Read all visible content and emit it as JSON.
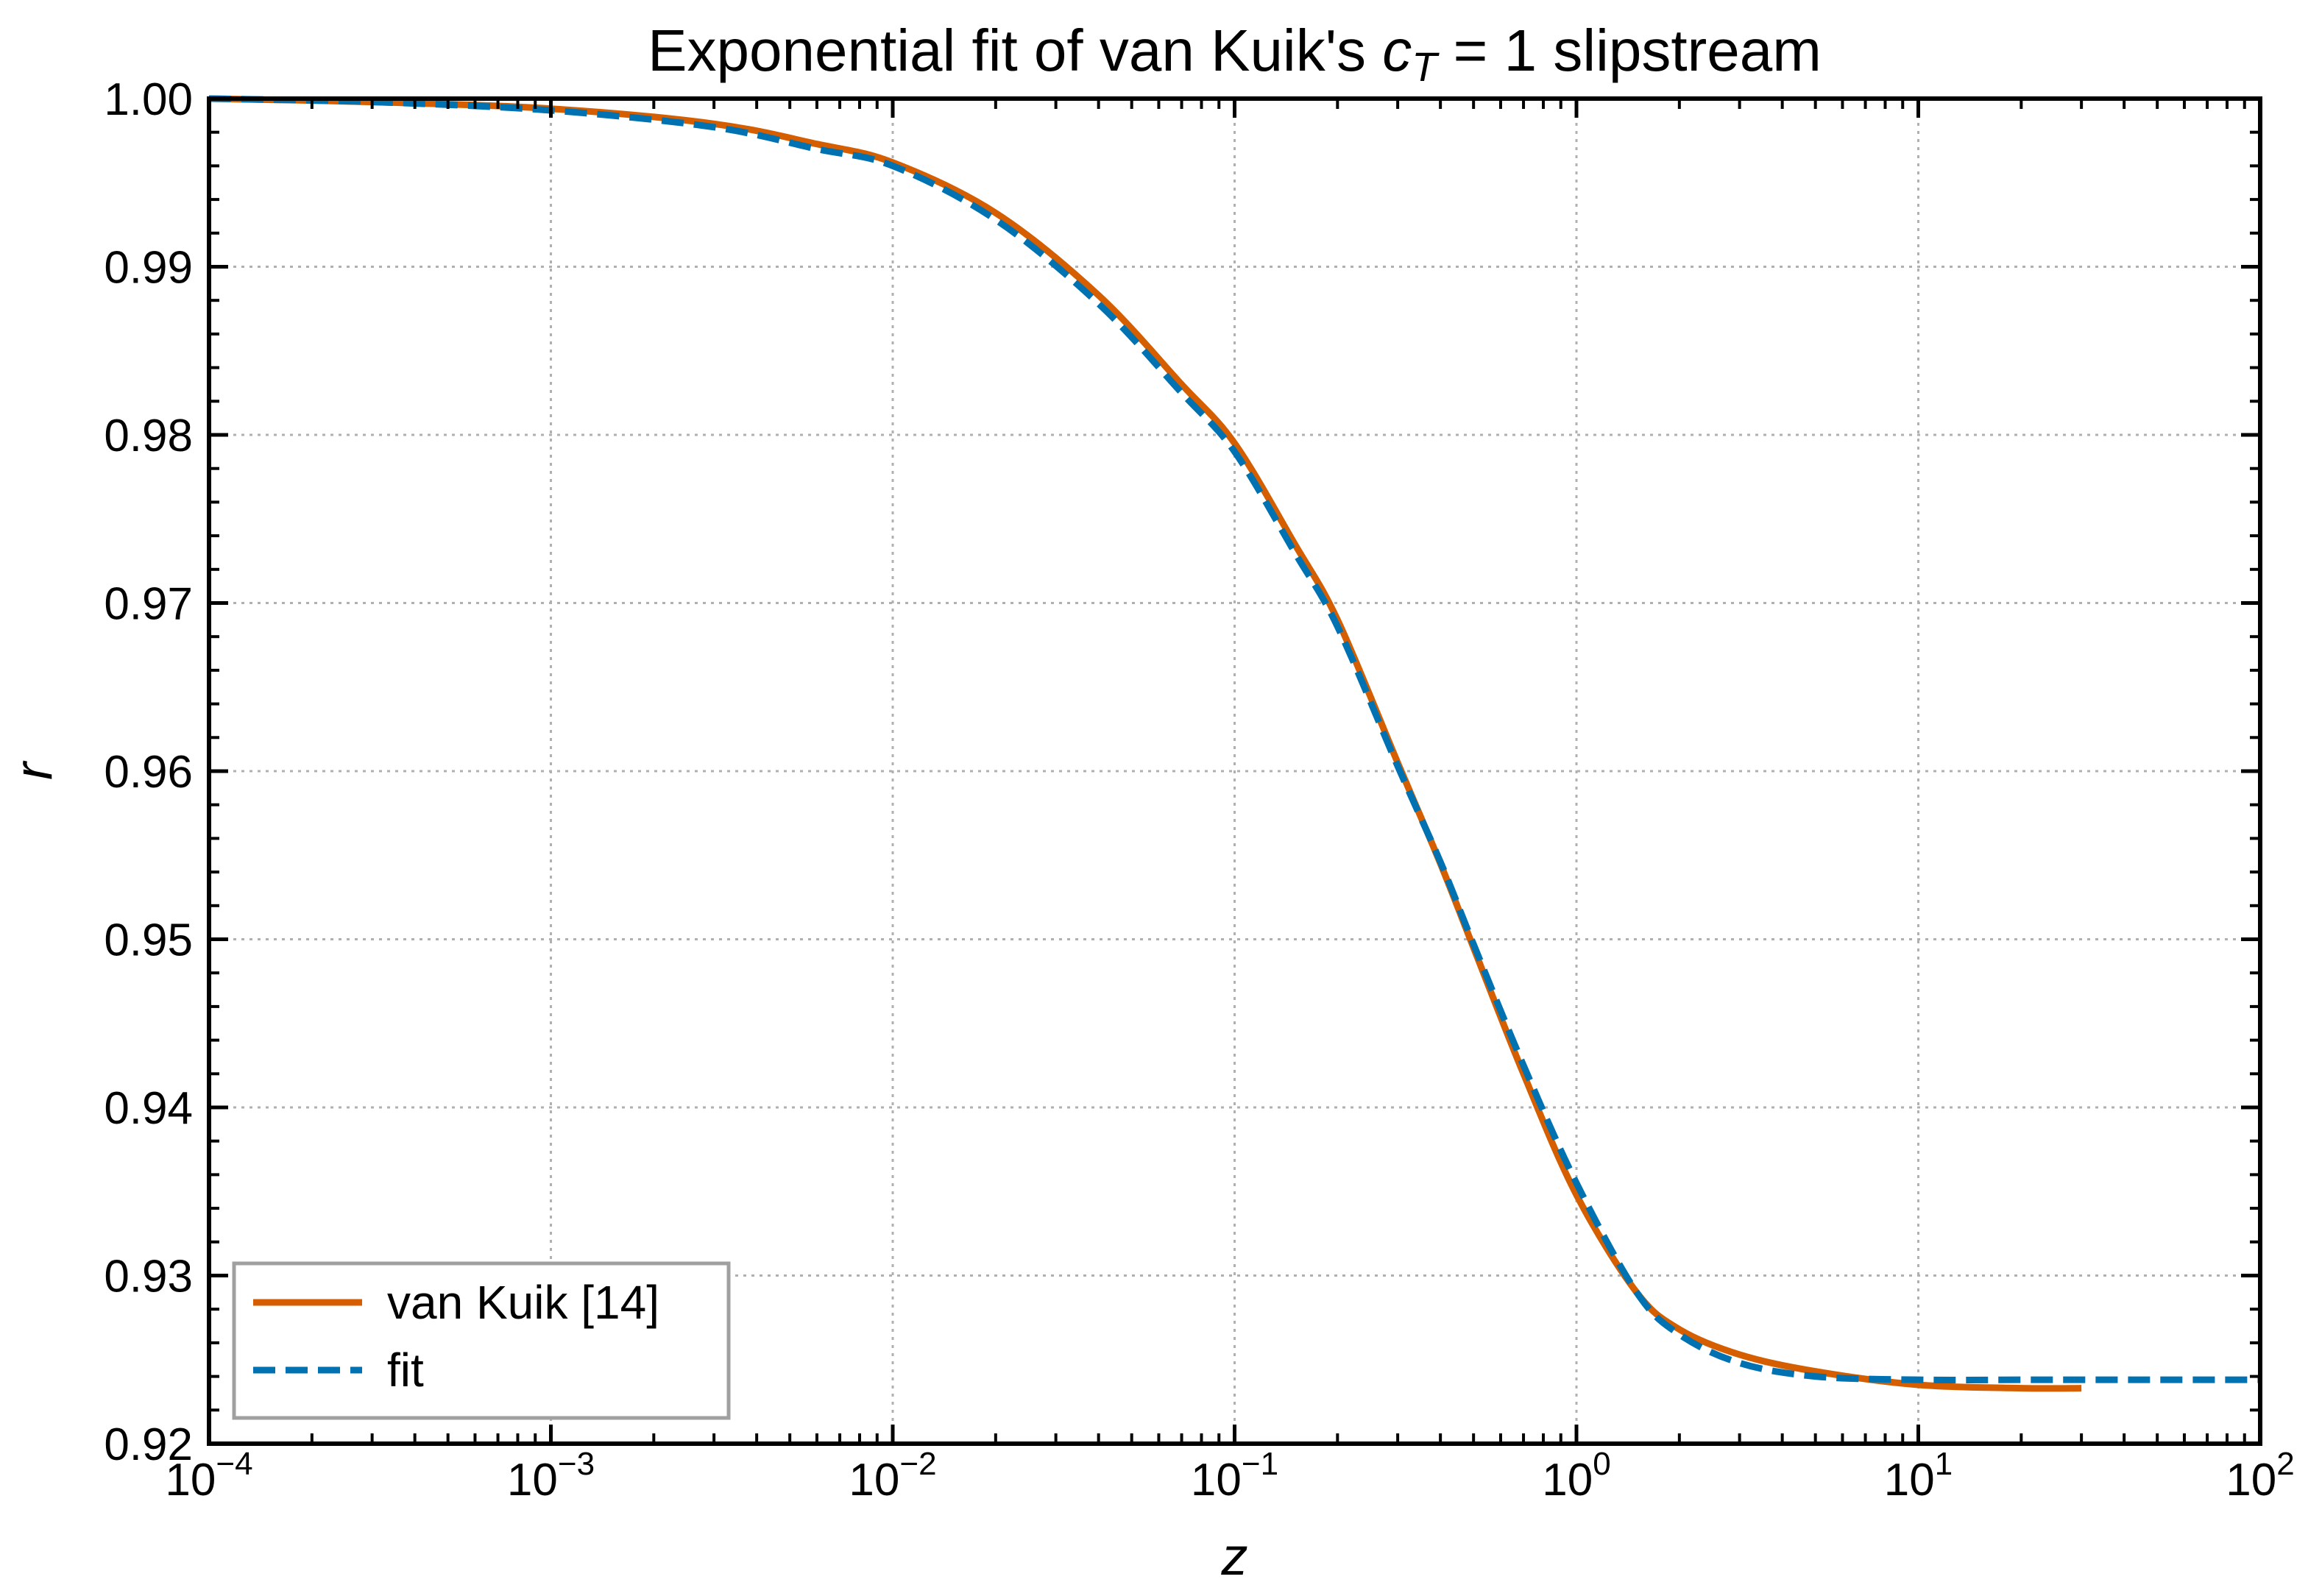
{
  "chart_data": {
    "type": "line",
    "title": "Exponential fit of van Kuik's c_T = 1 slipstream",
    "title_parts": {
      "prefix": "Exponential fit of van Kuik's ",
      "var": "c",
      "sub": "T",
      "suffix": " = 1 slipstream"
    },
    "xlabel": "z",
    "ylabel": "r",
    "xscale": "log",
    "xlim": [
      0.0001,
      100
    ],
    "ylim": [
      0.92,
      1.0
    ],
    "grid": true,
    "legend_position": "lower-left",
    "x_ticks": [
      {
        "value": 0.0001,
        "base": "10",
        "exp": "−4"
      },
      {
        "value": 0.001,
        "base": "10",
        "exp": "−3"
      },
      {
        "value": 0.01,
        "base": "10",
        "exp": "−2"
      },
      {
        "value": 0.1,
        "base": "10",
        "exp": "−1"
      },
      {
        "value": 1,
        "base": "10",
        "exp": "0"
      },
      {
        "value": 10,
        "base": "10",
        "exp": "1"
      },
      {
        "value": 100,
        "base": "10",
        "exp": "2"
      }
    ],
    "y_ticks": [
      {
        "value": 0.92,
        "label": "0.92"
      },
      {
        "value": 0.93,
        "label": "0.93"
      },
      {
        "value": 0.94,
        "label": "0.94"
      },
      {
        "value": 0.95,
        "label": "0.95"
      },
      {
        "value": 0.96,
        "label": "0.96"
      },
      {
        "value": 0.97,
        "label": "0.97"
      },
      {
        "value": 0.98,
        "label": "0.98"
      },
      {
        "value": 0.99,
        "label": "0.99"
      },
      {
        "value": 1.0,
        "label": "1.00"
      }
    ],
    "series": [
      {
        "name": "van Kuik [14]",
        "color": "#d55e00",
        "style": "solid",
        "x": [
          0.0001,
          0.0003,
          0.001,
          0.003,
          0.006,
          0.01,
          0.02,
          0.04,
          0.07,
          0.1,
          0.15,
          0.2,
          0.3,
          0.4,
          0.5,
          0.7,
          1.0,
          1.5,
          2.0,
          3.0,
          5.0,
          10.0,
          20.0,
          30.0
        ],
        "y": [
          1.0,
          0.9998,
          0.9994,
          0.9985,
          0.9973,
          0.9962,
          0.9932,
          0.9883,
          0.983,
          0.9795,
          0.9735,
          0.969,
          0.9605,
          0.9545,
          0.9495,
          0.942,
          0.9348,
          0.929,
          0.9268,
          0.9253,
          0.9243,
          0.9235,
          0.9233,
          0.9233
        ]
      },
      {
        "name": "fit",
        "color": "#0072b2",
        "style": "dashed",
        "x": [
          0.0001,
          0.0003,
          0.001,
          0.003,
          0.006,
          0.01,
          0.02,
          0.04,
          0.07,
          0.1,
          0.15,
          0.2,
          0.3,
          0.4,
          0.5,
          0.7,
          1.0,
          1.5,
          2.0,
          3.0,
          5.0,
          10.0,
          20.0,
          50.0,
          100.0
        ],
        "y": [
          1.0,
          0.9998,
          0.9993,
          0.9983,
          0.997,
          0.996,
          0.9928,
          0.9878,
          0.9825,
          0.979,
          0.973,
          0.9686,
          0.9603,
          0.9546,
          0.9497,
          0.9425,
          0.9355,
          0.929,
          0.9265,
          0.9248,
          0.924,
          0.9238,
          0.9238,
          0.9238,
          0.9238
        ]
      }
    ]
  }
}
